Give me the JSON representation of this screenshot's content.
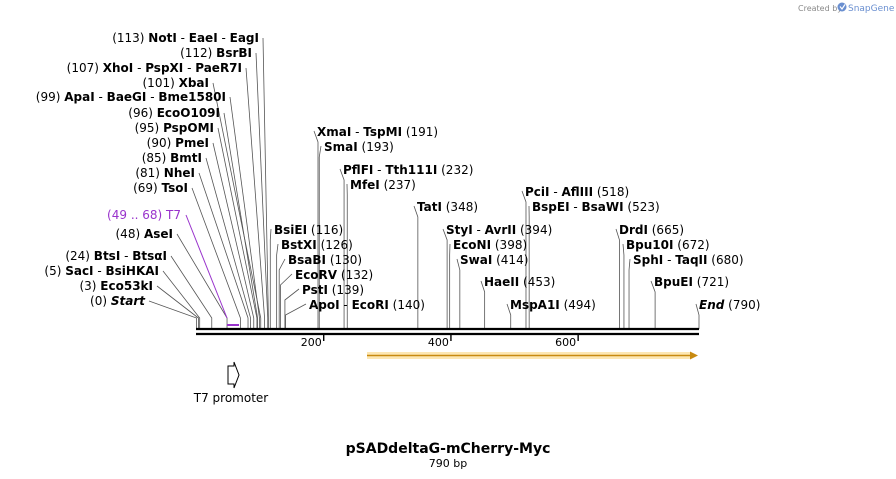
{
  "credit": {
    "created_by": "Created by",
    "brand": "SnapGene",
    "logo_icon": "snapgene-logo-icon"
  },
  "title": "pSADdeltaG-mCherry-Myc",
  "length_label": "790 bp",
  "total_bp": 790,
  "ticks": [
    {
      "bp": 200,
      "label": "200"
    },
    {
      "bp": 400,
      "label": "400"
    },
    {
      "bp": 600,
      "label": "600"
    }
  ],
  "left_labels": [
    {
      "pos": "(113)",
      "names": [
        "NotI",
        "EaeI",
        "EagI"
      ],
      "bp": 113
    },
    {
      "pos": "(112)",
      "names": [
        "BsrBI"
      ],
      "bp": 112
    },
    {
      "pos": "(107)",
      "names": [
        "XhoI",
        "PspXI",
        "PaeR7I"
      ],
      "bp": 107
    },
    {
      "pos": "(101)",
      "names": [
        "XbaI"
      ],
      "bp": 101
    },
    {
      "pos": "(99)",
      "names": [
        "ApaI",
        "BaeGI",
        "Bme1580I"
      ],
      "bp": 99
    },
    {
      "pos": "(96)",
      "names": [
        "EcoO109I"
      ],
      "bp": 96
    },
    {
      "pos": "(95)",
      "names": [
        "PspOMI"
      ],
      "bp": 95
    },
    {
      "pos": "(90)",
      "names": [
        "PmeI"
      ],
      "bp": 90
    },
    {
      "pos": "(85)",
      "names": [
        "BmtI"
      ],
      "bp": 85
    },
    {
      "pos": "(81)",
      "names": [
        "NheI"
      ],
      "bp": 81
    },
    {
      "pos": "(69)",
      "names": [
        "TsoI"
      ],
      "bp": 69
    },
    {
      "pos": "(48)",
      "names": [
        "AseI"
      ],
      "bp": 48
    },
    {
      "pos": "(24)",
      "names": [
        "BtsI",
        "BtsαI"
      ],
      "bp": 24
    },
    {
      "pos": "(5)",
      "names": [
        "SacI",
        "BsiHKAI"
      ],
      "bp": 5
    },
    {
      "pos": "(3)",
      "names": [
        "Eco53kI"
      ],
      "bp": 3
    },
    {
      "pos": "(0)",
      "names": [
        "Start"
      ],
      "bp": 0
    }
  ],
  "primer_label": {
    "pos": "(49 .. 68)",
    "name": "T7",
    "bp_start": 49,
    "bp_end": 68
  },
  "right_labels": [
    {
      "names": [
        "XmaI",
        "TspMI"
      ],
      "pos": "(191)",
      "bp": 191
    },
    {
      "names": [
        "SmaI"
      ],
      "pos": "(193)",
      "bp": 193
    },
    {
      "names": [
        "PflFI",
        "Tth111I"
      ],
      "pos": "(232)",
      "bp": 232
    },
    {
      "names": [
        "MfeI"
      ],
      "pos": "(237)",
      "bp": 237
    },
    {
      "names": [
        "TatI"
      ],
      "pos": "(348)",
      "bp": 348
    },
    {
      "names": [
        "StyI",
        "AvrII"
      ],
      "pos": "(394)",
      "bp": 394
    },
    {
      "names": [
        "EcoNI"
      ],
      "pos": "(398)",
      "bp": 398
    },
    {
      "names": [
        "SwaI"
      ],
      "pos": "(414)",
      "bp": 414
    },
    {
      "names": [
        "HaeII"
      ],
      "pos": "(453)",
      "bp": 453
    },
    {
      "names": [
        "MspA1I"
      ],
      "pos": "(494)",
      "bp": 494
    },
    {
      "names": [
        "PciI",
        "AflIII"
      ],
      "pos": "(518)",
      "bp": 518
    },
    {
      "names": [
        "BspEI",
        "BsaWI"
      ],
      "pos": "(523)",
      "bp": 523
    },
    {
      "names": [
        "DrdI"
      ],
      "pos": "(665)",
      "bp": 665
    },
    {
      "names": [
        "Bpu10I"
      ],
      "pos": "(672)",
      "bp": 672
    },
    {
      "names": [
        "SphI",
        "TaqII"
      ],
      "pos": "(680)",
      "bp": 680
    },
    {
      "names": [
        "BpuEI"
      ],
      "pos": "(721)",
      "bp": 721
    },
    {
      "names": [
        "End"
      ],
      "pos": "(790)",
      "bp": 790
    }
  ],
  "middle_labels": [
    {
      "names": [
        "BsiEI"
      ],
      "pos": "(116)",
      "bp": 116
    },
    {
      "names": [
        "BstXI"
      ],
      "pos": "(126)",
      "bp": 126
    },
    {
      "names": [
        "BsaBI"
      ],
      "pos": "(130)",
      "bp": 130
    },
    {
      "names": [
        "EcoRV"
      ],
      "pos": "(132)",
      "bp": 132
    },
    {
      "names": [
        "PstI"
      ],
      "pos": "(139)",
      "bp": 139
    },
    {
      "names": [
        "ApoI",
        "EcoRI"
      ],
      "pos": "(140)",
      "bp": 140
    }
  ],
  "features": {
    "orf": {
      "bp_start": 269,
      "bp_end": 790,
      "color": "#f5a623"
    },
    "promoter": {
      "label": "T7 promoter",
      "bp": 49
    }
  },
  "colors": {
    "primer": "#9933cc",
    "line": "#000000"
  }
}
